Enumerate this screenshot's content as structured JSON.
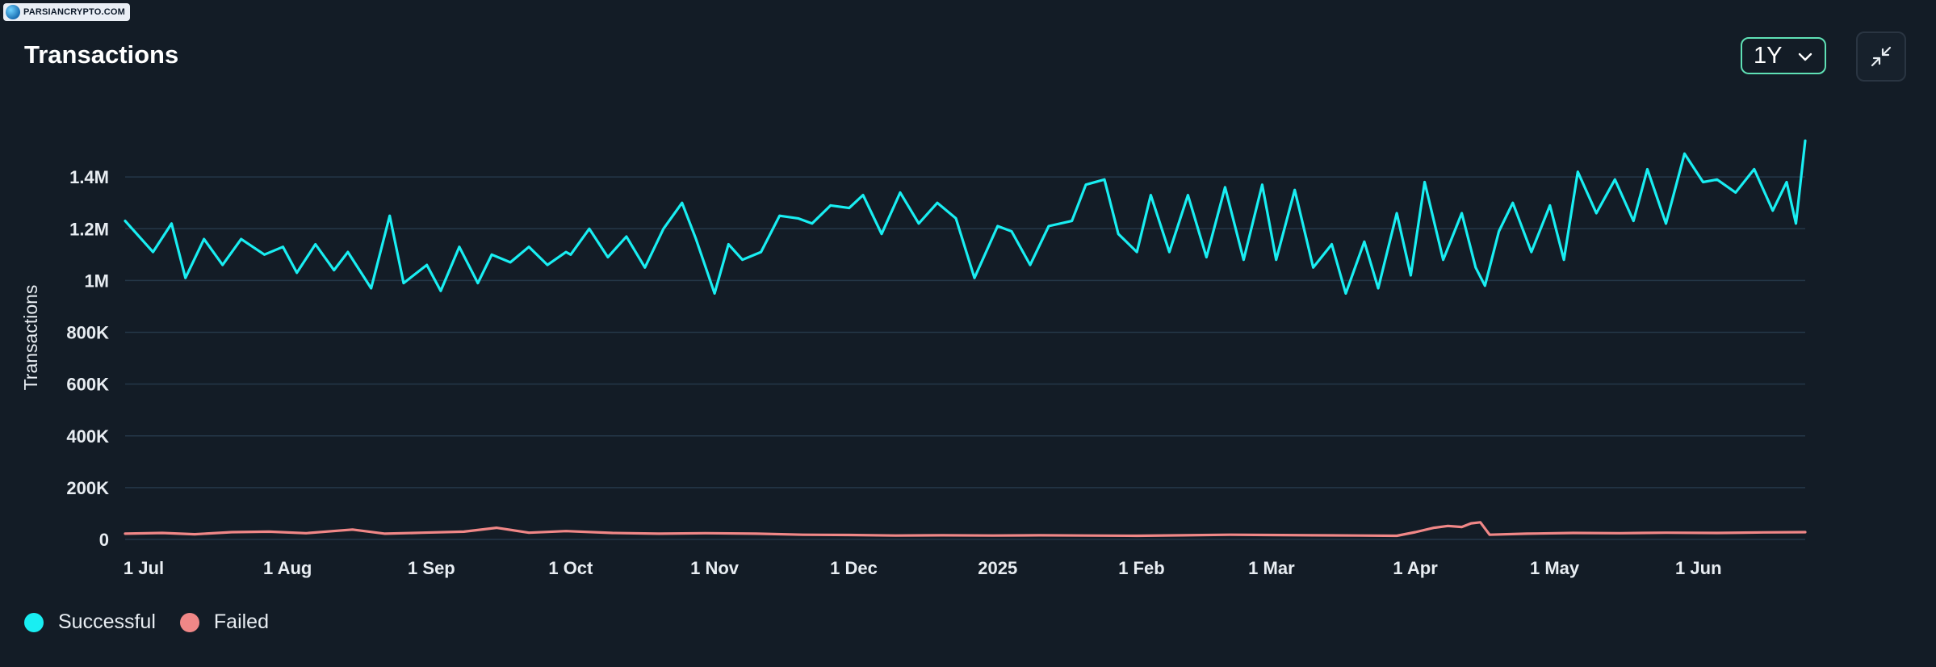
{
  "watermark": {
    "text": "PARSIANCRYPTO.COM"
  },
  "header": {
    "title": "Transactions",
    "range_value": "1Y",
    "collapse_icon": "collapse-arrows-icon",
    "accent_color": "#5fe0b5"
  },
  "legend": {
    "items": [
      {
        "label": "Successful",
        "color": "#19eef2"
      },
      {
        "label": "Failed",
        "color": "#f08787"
      }
    ]
  },
  "chart_data": {
    "type": "line",
    "title": "Transactions",
    "ylabel": "Transactions",
    "xlabel": "",
    "ylim": [
      0,
      1600000
    ],
    "y_ticks": [
      0,
      200000,
      400000,
      600000,
      800000,
      1000000,
      1200000,
      1400000
    ],
    "y_tick_labels": [
      "0",
      "200K",
      "400K",
      "600K",
      "800K",
      "1M",
      "1.2M",
      "1.4M"
    ],
    "x_range": [
      "2024-06-27",
      "2025-06-24"
    ],
    "x_ticks": [
      "2024-07-01",
      "2024-08-01",
      "2024-09-01",
      "2024-10-01",
      "2024-11-01",
      "2024-12-01",
      "2025-01-01",
      "2025-02-01",
      "2025-03-01",
      "2025-04-01",
      "2025-05-01",
      "2025-06-01"
    ],
    "x_tick_labels": [
      "1 Jul",
      "1 Aug",
      "1 Sep",
      "1 Oct",
      "1 Nov",
      "1 Dec",
      "2025",
      "1 Feb",
      "1 Mar",
      "1 Apr",
      "1 May",
      "1 Jun"
    ],
    "grid": true,
    "legend_position": "bottom-left",
    "series": [
      {
        "name": "Successful",
        "color": "#19eef2",
        "points": [
          [
            "2024-06-27",
            1230000
          ],
          [
            "2024-07-03",
            1110000
          ],
          [
            "2024-07-07",
            1220000
          ],
          [
            "2024-07-10",
            1010000
          ],
          [
            "2024-07-14",
            1160000
          ],
          [
            "2024-07-18",
            1060000
          ],
          [
            "2024-07-22",
            1160000
          ],
          [
            "2024-07-27",
            1100000
          ],
          [
            "2024-07-31",
            1130000
          ],
          [
            "2024-08-03",
            1030000
          ],
          [
            "2024-08-07",
            1140000
          ],
          [
            "2024-08-11",
            1040000
          ],
          [
            "2024-08-14",
            1110000
          ],
          [
            "2024-08-19",
            970000
          ],
          [
            "2024-08-23",
            1250000
          ],
          [
            "2024-08-26",
            990000
          ],
          [
            "2024-08-31",
            1060000
          ],
          [
            "2024-09-03",
            960000
          ],
          [
            "2024-09-07",
            1130000
          ],
          [
            "2024-09-11",
            990000
          ],
          [
            "2024-09-14",
            1100000
          ],
          [
            "2024-09-18",
            1070000
          ],
          [
            "2024-09-22",
            1130000
          ],
          [
            "2024-09-26",
            1060000
          ],
          [
            "2024-09-30",
            1110000
          ],
          [
            "2024-10-01",
            1100000
          ],
          [
            "2024-10-05",
            1200000
          ],
          [
            "2024-10-09",
            1090000
          ],
          [
            "2024-10-13",
            1170000
          ],
          [
            "2024-10-17",
            1050000
          ],
          [
            "2024-10-21",
            1200000
          ],
          [
            "2024-10-25",
            1300000
          ],
          [
            "2024-10-28",
            1160000
          ],
          [
            "2024-11-01",
            950000
          ],
          [
            "2024-11-04",
            1140000
          ],
          [
            "2024-11-07",
            1080000
          ],
          [
            "2024-11-11",
            1110000
          ],
          [
            "2024-11-15",
            1250000
          ],
          [
            "2024-11-19",
            1240000
          ],
          [
            "2024-11-22",
            1220000
          ],
          [
            "2024-11-26",
            1290000
          ],
          [
            "2024-11-30",
            1280000
          ],
          [
            "2024-12-03",
            1330000
          ],
          [
            "2024-12-07",
            1180000
          ],
          [
            "2024-12-11",
            1340000
          ],
          [
            "2024-12-15",
            1220000
          ],
          [
            "2024-12-19",
            1300000
          ],
          [
            "2024-12-23",
            1240000
          ],
          [
            "2024-12-27",
            1010000
          ],
          [
            "2025-01-01",
            1210000
          ],
          [
            "2025-01-04",
            1190000
          ],
          [
            "2025-01-08",
            1060000
          ],
          [
            "2025-01-12",
            1210000
          ],
          [
            "2025-01-17",
            1230000
          ],
          [
            "2025-01-20",
            1370000
          ],
          [
            "2025-01-24",
            1390000
          ],
          [
            "2025-01-27",
            1180000
          ],
          [
            "2025-01-31",
            1110000
          ],
          [
            "2025-02-03",
            1330000
          ],
          [
            "2025-02-07",
            1110000
          ],
          [
            "2025-02-11",
            1330000
          ],
          [
            "2025-02-15",
            1090000
          ],
          [
            "2025-02-19",
            1360000
          ],
          [
            "2025-02-23",
            1080000
          ],
          [
            "2025-02-27",
            1370000
          ],
          [
            "2025-03-02",
            1080000
          ],
          [
            "2025-03-06",
            1350000
          ],
          [
            "2025-03-10",
            1050000
          ],
          [
            "2025-03-14",
            1140000
          ],
          [
            "2025-03-17",
            950000
          ],
          [
            "2025-03-21",
            1150000
          ],
          [
            "2025-03-24",
            970000
          ],
          [
            "2025-03-28",
            1260000
          ],
          [
            "2025-03-31",
            1020000
          ],
          [
            "2025-04-03",
            1380000
          ],
          [
            "2025-04-07",
            1080000
          ],
          [
            "2025-04-11",
            1260000
          ],
          [
            "2025-04-14",
            1050000
          ],
          [
            "2025-04-16",
            980000
          ],
          [
            "2025-04-19",
            1190000
          ],
          [
            "2025-04-22",
            1300000
          ],
          [
            "2025-04-26",
            1110000
          ],
          [
            "2025-04-30",
            1290000
          ],
          [
            "2025-05-03",
            1080000
          ],
          [
            "2025-05-06",
            1420000
          ],
          [
            "2025-05-10",
            1260000
          ],
          [
            "2025-05-14",
            1390000
          ],
          [
            "2025-05-18",
            1230000
          ],
          [
            "2025-05-21",
            1430000
          ],
          [
            "2025-05-25",
            1220000
          ],
          [
            "2025-05-29",
            1490000
          ],
          [
            "2025-06-02",
            1380000
          ],
          [
            "2025-06-05",
            1390000
          ],
          [
            "2025-06-09",
            1340000
          ],
          [
            "2025-06-13",
            1430000
          ],
          [
            "2025-06-17",
            1270000
          ],
          [
            "2025-06-20",
            1380000
          ],
          [
            "2025-06-22",
            1220000
          ],
          [
            "2025-06-24",
            1540000
          ]
        ]
      },
      {
        "name": "Failed",
        "color": "#f08787",
        "points": [
          [
            "2024-06-27",
            22000
          ],
          [
            "2024-07-05",
            25000
          ],
          [
            "2024-07-12",
            20000
          ],
          [
            "2024-07-20",
            28000
          ],
          [
            "2024-07-28",
            30000
          ],
          [
            "2024-08-05",
            24000
          ],
          [
            "2024-08-15",
            38000
          ],
          [
            "2024-08-22",
            22000
          ],
          [
            "2024-08-30",
            26000
          ],
          [
            "2024-09-08",
            30000
          ],
          [
            "2024-09-15",
            45000
          ],
          [
            "2024-09-22",
            26000
          ],
          [
            "2024-09-30",
            32000
          ],
          [
            "2024-10-10",
            25000
          ],
          [
            "2024-10-20",
            22000
          ],
          [
            "2024-10-30",
            24000
          ],
          [
            "2024-11-10",
            22000
          ],
          [
            "2024-11-20",
            18000
          ],
          [
            "2024-11-30",
            17000
          ],
          [
            "2024-12-10",
            15000
          ],
          [
            "2024-12-20",
            16000
          ],
          [
            "2024-12-31",
            15000
          ],
          [
            "2025-01-10",
            16000
          ],
          [
            "2025-01-20",
            15000
          ],
          [
            "2025-01-31",
            14000
          ],
          [
            "2025-02-10",
            16000
          ],
          [
            "2025-02-20",
            18000
          ],
          [
            "2025-02-28",
            17000
          ],
          [
            "2025-03-10",
            16000
          ],
          [
            "2025-03-20",
            15000
          ],
          [
            "2025-03-28",
            14000
          ],
          [
            "2025-04-01",
            28000
          ],
          [
            "2025-04-05",
            45000
          ],
          [
            "2025-04-08",
            52000
          ],
          [
            "2025-04-11",
            48000
          ],
          [
            "2025-04-13",
            62000
          ],
          [
            "2025-04-15",
            66000
          ],
          [
            "2025-04-17",
            18000
          ],
          [
            "2025-04-25",
            22000
          ],
          [
            "2025-05-05",
            25000
          ],
          [
            "2025-05-15",
            24000
          ],
          [
            "2025-05-25",
            26000
          ],
          [
            "2025-06-05",
            25000
          ],
          [
            "2025-06-15",
            27000
          ],
          [
            "2025-06-24",
            28000
          ]
        ]
      }
    ]
  }
}
